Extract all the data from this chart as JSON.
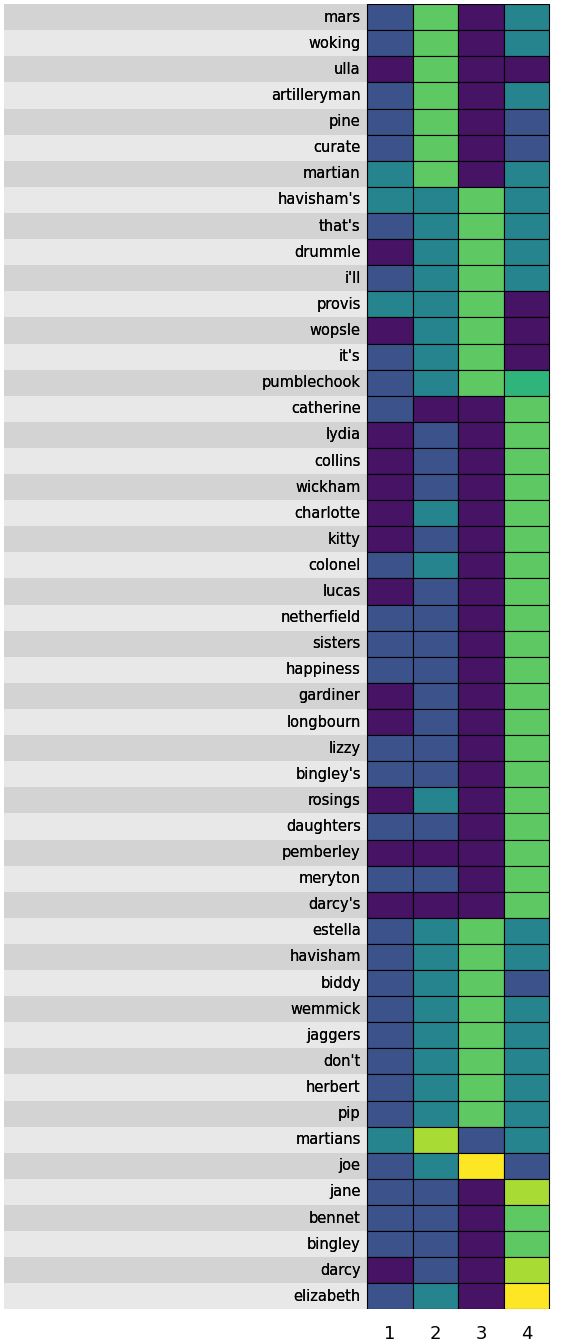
{
  "terms": [
    "mars",
    "woking",
    "ulla",
    "artilleryman",
    "pine",
    "curate",
    "martian",
    "havisham's",
    "that's",
    "drummle",
    "i'll",
    "provis",
    "wopsle",
    "it's",
    "pumblechook",
    "catherine",
    "lydia",
    "collins",
    "wickham",
    "charlotte",
    "kitty",
    "colonel",
    "lucas",
    "netherfield",
    "sisters",
    "happiness",
    "gardiner",
    "longbourn",
    "lizzy",
    "bingley's",
    "rosings",
    "daughters",
    "pemberley",
    "meryton",
    "darcy's",
    "estella",
    "havisham",
    "biddy",
    "wemmick",
    "jaggers",
    "don't",
    "herbert",
    "pip",
    "martians",
    "joe",
    "jane",
    "bennet",
    "bingley",
    "darcy",
    "elizabeth"
  ],
  "matrix": [
    [
      0.25,
      0.75,
      0.05,
      0.45
    ],
    [
      0.25,
      0.75,
      0.05,
      0.45
    ],
    [
      0.05,
      0.75,
      0.05,
      0.05
    ],
    [
      0.25,
      0.75,
      0.05,
      0.45
    ],
    [
      0.25,
      0.75,
      0.05,
      0.25
    ],
    [
      0.25,
      0.75,
      0.05,
      0.25
    ],
    [
      0.45,
      0.75,
      0.05,
      0.45
    ],
    [
      0.45,
      0.45,
      0.75,
      0.45
    ],
    [
      0.25,
      0.45,
      0.75,
      0.45
    ],
    [
      0.05,
      0.45,
      0.75,
      0.45
    ],
    [
      0.25,
      0.45,
      0.75,
      0.45
    ],
    [
      0.45,
      0.45,
      0.75,
      0.05
    ],
    [
      0.05,
      0.45,
      0.75,
      0.05
    ],
    [
      0.25,
      0.45,
      0.75,
      0.05
    ],
    [
      0.25,
      0.45,
      0.75,
      0.65
    ],
    [
      0.25,
      0.05,
      0.05,
      0.75
    ],
    [
      0.05,
      0.25,
      0.05,
      0.75
    ],
    [
      0.05,
      0.25,
      0.05,
      0.75
    ],
    [
      0.05,
      0.25,
      0.05,
      0.75
    ],
    [
      0.05,
      0.45,
      0.05,
      0.75
    ],
    [
      0.05,
      0.25,
      0.05,
      0.75
    ],
    [
      0.25,
      0.45,
      0.05,
      0.75
    ],
    [
      0.05,
      0.25,
      0.05,
      0.75
    ],
    [
      0.25,
      0.25,
      0.05,
      0.75
    ],
    [
      0.25,
      0.25,
      0.05,
      0.75
    ],
    [
      0.25,
      0.25,
      0.05,
      0.75
    ],
    [
      0.05,
      0.25,
      0.05,
      0.75
    ],
    [
      0.05,
      0.25,
      0.05,
      0.75
    ],
    [
      0.25,
      0.25,
      0.05,
      0.75
    ],
    [
      0.25,
      0.25,
      0.05,
      0.75
    ],
    [
      0.05,
      0.45,
      0.05,
      0.75
    ],
    [
      0.25,
      0.25,
      0.05,
      0.75
    ],
    [
      0.05,
      0.05,
      0.05,
      0.75
    ],
    [
      0.25,
      0.25,
      0.05,
      0.75
    ],
    [
      0.05,
      0.05,
      0.05,
      0.75
    ],
    [
      0.25,
      0.45,
      0.75,
      0.45
    ],
    [
      0.25,
      0.45,
      0.75,
      0.45
    ],
    [
      0.25,
      0.45,
      0.75,
      0.25
    ],
    [
      0.25,
      0.45,
      0.75,
      0.45
    ],
    [
      0.25,
      0.45,
      0.75,
      0.45
    ],
    [
      0.25,
      0.45,
      0.75,
      0.45
    ],
    [
      0.25,
      0.45,
      0.75,
      0.45
    ],
    [
      0.25,
      0.45,
      0.75,
      0.45
    ],
    [
      0.45,
      0.87,
      0.25,
      0.45
    ],
    [
      0.25,
      0.45,
      1.0,
      0.25
    ],
    [
      0.25,
      0.25,
      0.05,
      0.87
    ],
    [
      0.25,
      0.25,
      0.05,
      0.75
    ],
    [
      0.25,
      0.25,
      0.05,
      0.75
    ],
    [
      0.05,
      0.25,
      0.05,
      0.87
    ],
    [
      0.25,
      0.45,
      0.05,
      1.0
    ]
  ],
  "row_colors": [
    "#d3d3d3",
    "#e8e8e8"
  ],
  "colormap": "viridis",
  "xlabel_labels": [
    "1",
    "2",
    "3",
    "4"
  ],
  "label_fontsize": 10.5,
  "xlabel_fontsize": 13
}
